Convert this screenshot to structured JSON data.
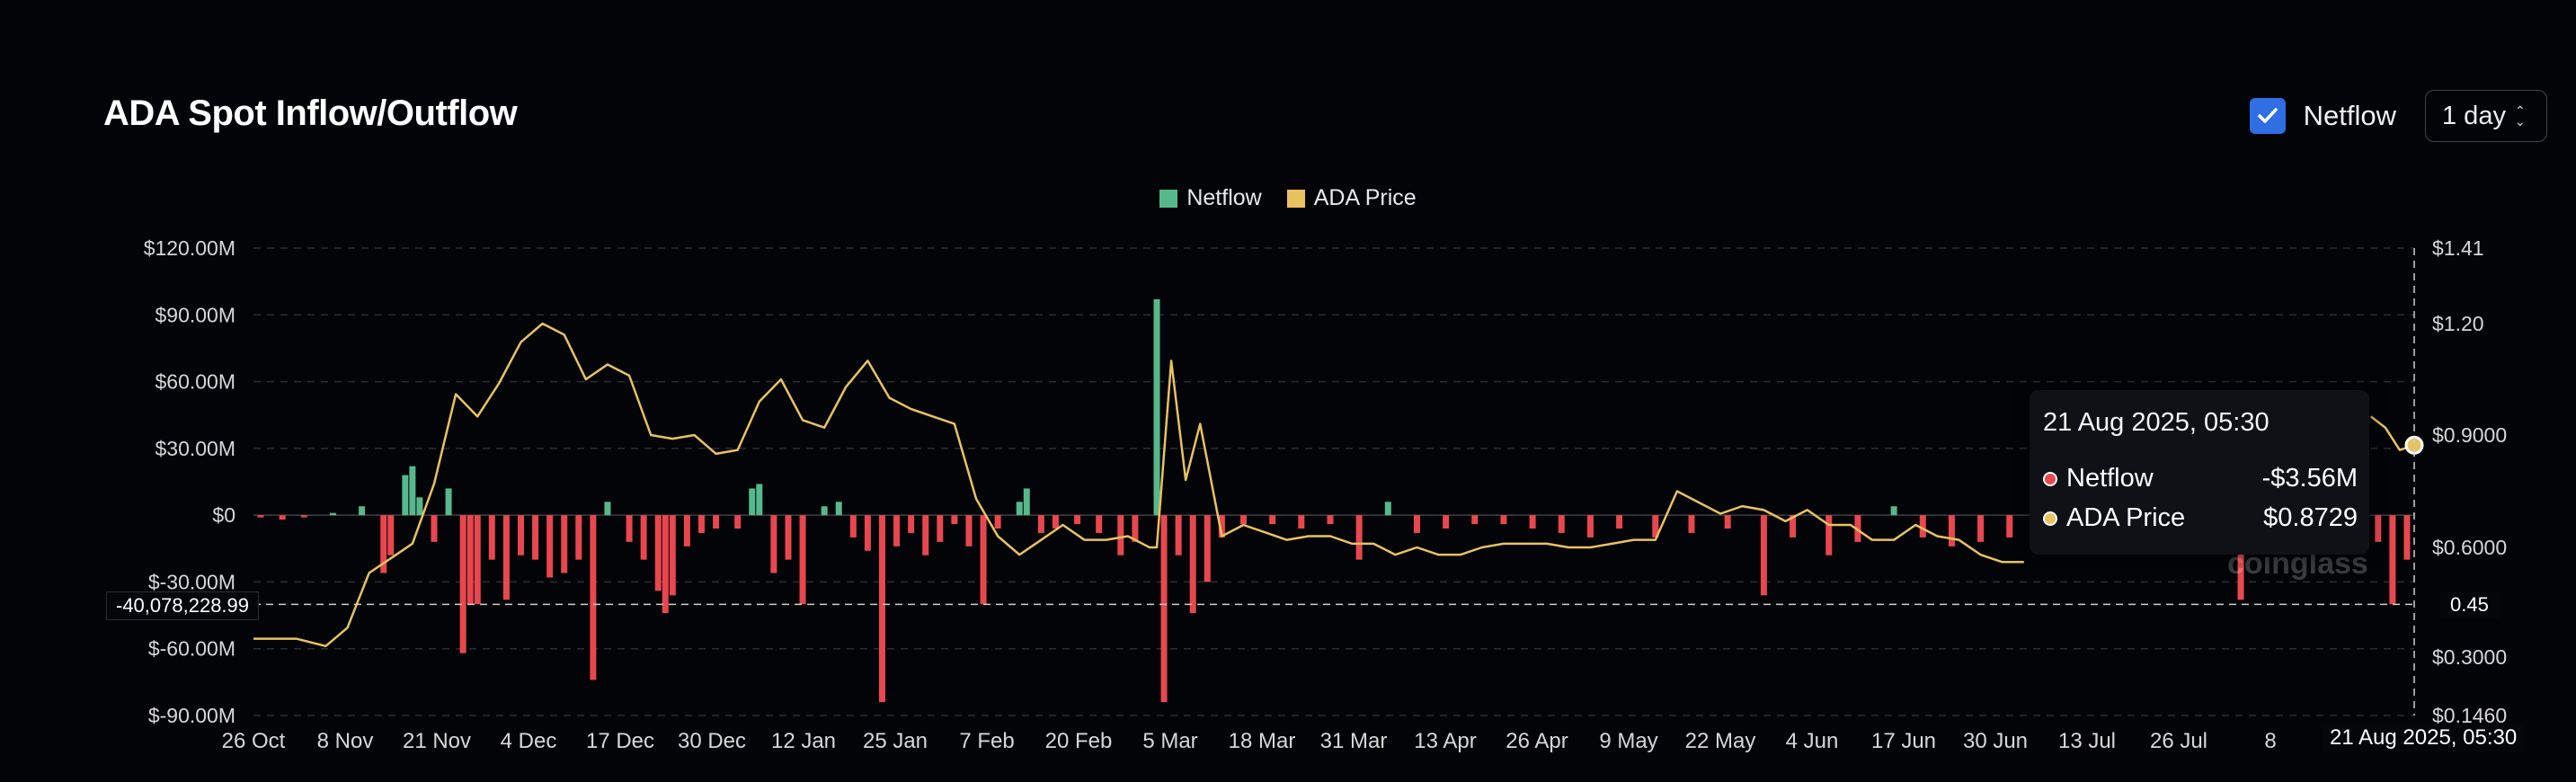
{
  "header": {
    "title": "ADA Spot Inflow/Outflow",
    "checkbox_label": "Netflow",
    "checkbox_checked": true,
    "interval": "1 day"
  },
  "legend": [
    {
      "label": "Netflow",
      "color": "#57b88c"
    },
    {
      "label": "ADA Price",
      "color": "#e9c260"
    }
  ],
  "tooltip": {
    "date": "21 Aug 2025, 05:30",
    "rows": [
      {
        "label": "Netflow",
        "value": "-$3.56M",
        "color": "#e8474f"
      },
      {
        "label": "ADA Price",
        "value": "$0.8729",
        "color": "#e9c260"
      }
    ]
  },
  "crosshair": {
    "y_value_label": "-40,078,228.99",
    "price_label": "0.45",
    "date_label": "21 Aug 2025, 05:30"
  },
  "watermark": "coinglass",
  "chart_data": {
    "type": "bar",
    "left_axis": {
      "ticks": [
        "$120.00M",
        "$90.00M",
        "$60.00M",
        "$30.00M",
        "$0",
        "$-30.00M",
        "$-60.00M",
        "$-90.00M"
      ],
      "range": [
        -90,
        120
      ],
      "unit": "M USD"
    },
    "right_axis": {
      "ticks": [
        "$1.41",
        "$1.20",
        "$0.9000",
        "$0.6000",
        "$0.3000",
        "$0.1460"
      ],
      "type": "piecewise"
    },
    "x_ticks": [
      "26 Oct",
      "8 Nov",
      "21 Nov",
      "4 Dec",
      "17 Dec",
      "30 Dec",
      "12 Jan",
      "25 Jan",
      "7 Feb",
      "20 Feb",
      "5 Mar",
      "18 Mar",
      "31 Mar",
      "13 Apr",
      "26 Apr",
      "9 May",
      "22 May",
      "4 Jun",
      "17 Jun",
      "30 Jun",
      "13 Jul",
      "26 Jul",
      "8"
    ],
    "start_date": "2024-10-26",
    "end_date": "2025-08-21",
    "series": [
      {
        "name": "Netflow",
        "color_pos": "#57b88c",
        "color_neg": "#e8474f",
        "units": "M USD",
        "points": [
          {
            "x": "2024-10-27",
            "y": -1
          },
          {
            "x": "2024-10-30",
            "y": -2
          },
          {
            "x": "2024-11-02",
            "y": -1
          },
          {
            "x": "2024-11-06",
            "y": 1
          },
          {
            "x": "2024-11-10",
            "y": 4
          },
          {
            "x": "2024-11-13",
            "y": -26
          },
          {
            "x": "2024-11-14",
            "y": -18
          },
          {
            "x": "2024-11-16",
            "y": 18
          },
          {
            "x": "2024-11-17",
            "y": 22
          },
          {
            "x": "2024-11-18",
            "y": 8
          },
          {
            "x": "2024-11-20",
            "y": -12
          },
          {
            "x": "2024-11-22",
            "y": 12
          },
          {
            "x": "2024-11-24",
            "y": -62
          },
          {
            "x": "2024-11-25",
            "y": -40
          },
          {
            "x": "2024-11-26",
            "y": -40
          },
          {
            "x": "2024-11-28",
            "y": -20
          },
          {
            "x": "2024-11-30",
            "y": -38
          },
          {
            "x": "2024-12-02",
            "y": -18
          },
          {
            "x": "2024-12-04",
            "y": -20
          },
          {
            "x": "2024-12-06",
            "y": -28
          },
          {
            "x": "2024-12-08",
            "y": -26
          },
          {
            "x": "2024-12-10",
            "y": -20
          },
          {
            "x": "2024-12-12",
            "y": -74
          },
          {
            "x": "2024-12-14",
            "y": 6
          },
          {
            "x": "2024-12-17",
            "y": -12
          },
          {
            "x": "2024-12-19",
            "y": -20
          },
          {
            "x": "2024-12-21",
            "y": -34
          },
          {
            "x": "2024-12-22",
            "y": -44
          },
          {
            "x": "2024-12-23",
            "y": -36
          },
          {
            "x": "2024-12-25",
            "y": -14
          },
          {
            "x": "2024-12-27",
            "y": -8
          },
          {
            "x": "2024-12-29",
            "y": -6
          },
          {
            "x": "2025-01-01",
            "y": -6
          },
          {
            "x": "2025-01-03",
            "y": 12
          },
          {
            "x": "2025-01-04",
            "y": 14
          },
          {
            "x": "2025-01-06",
            "y": -26
          },
          {
            "x": "2025-01-08",
            "y": -20
          },
          {
            "x": "2025-01-10",
            "y": -40
          },
          {
            "x": "2025-01-13",
            "y": 4
          },
          {
            "x": "2025-01-15",
            "y": 6
          },
          {
            "x": "2025-01-17",
            "y": -10
          },
          {
            "x": "2025-01-19",
            "y": -16
          },
          {
            "x": "2025-01-21",
            "y": -84
          },
          {
            "x": "2025-01-23",
            "y": -14
          },
          {
            "x": "2025-01-25",
            "y": -8
          },
          {
            "x": "2025-01-27",
            "y": -18
          },
          {
            "x": "2025-01-29",
            "y": -12
          },
          {
            "x": "2025-01-31",
            "y": -4
          },
          {
            "x": "2025-02-02",
            "y": -14
          },
          {
            "x": "2025-02-04",
            "y": -40
          },
          {
            "x": "2025-02-06",
            "y": -6
          },
          {
            "x": "2025-02-09",
            "y": 6
          },
          {
            "x": "2025-02-10",
            "y": 12
          },
          {
            "x": "2025-02-12",
            "y": -8
          },
          {
            "x": "2025-02-14",
            "y": -6
          },
          {
            "x": "2025-02-17",
            "y": -4
          },
          {
            "x": "2025-02-20",
            "y": -8
          },
          {
            "x": "2025-02-23",
            "y": -18
          },
          {
            "x": "2025-02-25",
            "y": -12
          },
          {
            "x": "2025-02-28",
            "y": 97
          },
          {
            "x": "2025-03-01",
            "y": -84
          },
          {
            "x": "2025-03-03",
            "y": -18
          },
          {
            "x": "2025-03-05",
            "y": -44
          },
          {
            "x": "2025-03-07",
            "y": -30
          },
          {
            "x": "2025-03-09",
            "y": -10
          },
          {
            "x": "2025-03-12",
            "y": -4
          },
          {
            "x": "2025-03-16",
            "y": -4
          },
          {
            "x": "2025-03-20",
            "y": -6
          },
          {
            "x": "2025-03-24",
            "y": -4
          },
          {
            "x": "2025-03-28",
            "y": -20
          },
          {
            "x": "2025-04-01",
            "y": 6
          },
          {
            "x": "2025-04-05",
            "y": -8
          },
          {
            "x": "2025-04-09",
            "y": -6
          },
          {
            "x": "2025-04-13",
            "y": -4
          },
          {
            "x": "2025-04-17",
            "y": -4
          },
          {
            "x": "2025-04-21",
            "y": -6
          },
          {
            "x": "2025-04-25",
            "y": -8
          },
          {
            "x": "2025-04-29",
            "y": -10
          },
          {
            "x": "2025-05-03",
            "y": -6
          },
          {
            "x": "2025-05-08",
            "y": -10
          },
          {
            "x": "2025-05-13",
            "y": -8
          },
          {
            "x": "2025-05-18",
            "y": -6
          },
          {
            "x": "2025-05-23",
            "y": -36
          },
          {
            "x": "2025-05-27",
            "y": -10
          },
          {
            "x": "2025-06-01",
            "y": -18
          },
          {
            "x": "2025-06-05",
            "y": -12
          },
          {
            "x": "2025-06-10",
            "y": 4
          },
          {
            "x": "2025-06-14",
            "y": -10
          },
          {
            "x": "2025-06-18",
            "y": -14
          },
          {
            "x": "2025-06-22",
            "y": -12
          },
          {
            "x": "2025-06-26",
            "y": -10
          },
          {
            "x": "2025-07-28",
            "y": -38
          },
          {
            "x": "2025-08-10",
            "y": -16
          },
          {
            "x": "2025-08-13",
            "y": 8
          },
          {
            "x": "2025-08-16",
            "y": -12
          },
          {
            "x": "2025-08-18",
            "y": -40
          },
          {
            "x": "2025-08-20",
            "y": -20
          }
        ]
      },
      {
        "name": "ADA Price",
        "color": "#e9c260",
        "units": "USD",
        "points": [
          {
            "x": "2024-10-26",
            "y": 0.35
          },
          {
            "x": "2024-10-29",
            "y": 0.35
          },
          {
            "x": "2024-11-01",
            "y": 0.35
          },
          {
            "x": "2024-11-05",
            "y": 0.33
          },
          {
            "x": "2024-11-08",
            "y": 0.38
          },
          {
            "x": "2024-11-11",
            "y": 0.53
          },
          {
            "x": "2024-11-14",
            "y": 0.57
          },
          {
            "x": "2024-11-17",
            "y": 0.61
          },
          {
            "x": "2024-11-20",
            "y": 0.77
          },
          {
            "x": "2024-11-23",
            "y": 1.01
          },
          {
            "x": "2024-11-26",
            "y": 0.95
          },
          {
            "x": "2024-11-29",
            "y": 1.04
          },
          {
            "x": "2024-12-02",
            "y": 1.15
          },
          {
            "x": "2024-12-05",
            "y": 1.2
          },
          {
            "x": "2024-12-08",
            "y": 1.17
          },
          {
            "x": "2024-12-11",
            "y": 1.05
          },
          {
            "x": "2024-12-14",
            "y": 1.09
          },
          {
            "x": "2024-12-17",
            "y": 1.06
          },
          {
            "x": "2024-12-20",
            "y": 0.9
          },
          {
            "x": "2024-12-23",
            "y": 0.89
          },
          {
            "x": "2024-12-26",
            "y": 0.9
          },
          {
            "x": "2024-12-29",
            "y": 0.85
          },
          {
            "x": "2025-01-01",
            "y": 0.86
          },
          {
            "x": "2025-01-04",
            "y": 0.99
          },
          {
            "x": "2025-01-07",
            "y": 1.05
          },
          {
            "x": "2025-01-10",
            "y": 0.94
          },
          {
            "x": "2025-01-13",
            "y": 0.92
          },
          {
            "x": "2025-01-16",
            "y": 1.03
          },
          {
            "x": "2025-01-19",
            "y": 1.1
          },
          {
            "x": "2025-01-22",
            "y": 1.0
          },
          {
            "x": "2025-01-25",
            "y": 0.97
          },
          {
            "x": "2025-01-28",
            "y": 0.95
          },
          {
            "x": "2025-01-31",
            "y": 0.93
          },
          {
            "x": "2025-02-03",
            "y": 0.73
          },
          {
            "x": "2025-02-06",
            "y": 0.63
          },
          {
            "x": "2025-02-09",
            "y": 0.58
          },
          {
            "x": "2025-02-12",
            "y": 0.62
          },
          {
            "x": "2025-02-15",
            "y": 0.66
          },
          {
            "x": "2025-02-18",
            "y": 0.62
          },
          {
            "x": "2025-02-21",
            "y": 0.62
          },
          {
            "x": "2025-02-24",
            "y": 0.63
          },
          {
            "x": "2025-02-27",
            "y": 0.6
          },
          {
            "x": "2025-02-28",
            "y": 0.6
          },
          {
            "x": "2025-03-02",
            "y": 1.1
          },
          {
            "x": "2025-03-04",
            "y": 0.78
          },
          {
            "x": "2025-03-06",
            "y": 0.93
          },
          {
            "x": "2025-03-09",
            "y": 0.63
          },
          {
            "x": "2025-03-12",
            "y": 0.66
          },
          {
            "x": "2025-03-15",
            "y": 0.64
          },
          {
            "x": "2025-03-18",
            "y": 0.62
          },
          {
            "x": "2025-03-21",
            "y": 0.63
          },
          {
            "x": "2025-03-24",
            "y": 0.63
          },
          {
            "x": "2025-03-27",
            "y": 0.61
          },
          {
            "x": "2025-03-30",
            "y": 0.61
          },
          {
            "x": "2025-04-02",
            "y": 0.58
          },
          {
            "x": "2025-04-05",
            "y": 0.6
          },
          {
            "x": "2025-04-08",
            "y": 0.58
          },
          {
            "x": "2025-04-11",
            "y": 0.58
          },
          {
            "x": "2025-04-14",
            "y": 0.6
          },
          {
            "x": "2025-04-17",
            "y": 0.61
          },
          {
            "x": "2025-04-20",
            "y": 0.61
          },
          {
            "x": "2025-04-23",
            "y": 0.61
          },
          {
            "x": "2025-04-26",
            "y": 0.6
          },
          {
            "x": "2025-04-29",
            "y": 0.6
          },
          {
            "x": "2025-05-02",
            "y": 0.61
          },
          {
            "x": "2025-05-05",
            "y": 0.62
          },
          {
            "x": "2025-05-08",
            "y": 0.62
          },
          {
            "x": "2025-05-11",
            "y": 0.75
          },
          {
            "x": "2025-05-14",
            "y": 0.72
          },
          {
            "x": "2025-05-17",
            "y": 0.69
          },
          {
            "x": "2025-05-20",
            "y": 0.71
          },
          {
            "x": "2025-05-23",
            "y": 0.7
          },
          {
            "x": "2025-05-26",
            "y": 0.67
          },
          {
            "x": "2025-05-29",
            "y": 0.7
          },
          {
            "x": "2025-06-01",
            "y": 0.66
          },
          {
            "x": "2025-06-04",
            "y": 0.66
          },
          {
            "x": "2025-06-07",
            "y": 0.62
          },
          {
            "x": "2025-06-10",
            "y": 0.62
          },
          {
            "x": "2025-06-13",
            "y": 0.66
          },
          {
            "x": "2025-06-16",
            "y": 0.63
          },
          {
            "x": "2025-06-19",
            "y": 0.62
          },
          {
            "x": "2025-06-22",
            "y": 0.58
          },
          {
            "x": "2025-06-25",
            "y": 0.56
          },
          {
            "x": "2025-06-28",
            "y": 0.56
          },
          {
            "x": "2025-08-15",
            "y": 0.95
          },
          {
            "x": "2025-08-17",
            "y": 0.92
          },
          {
            "x": "2025-08-19",
            "y": 0.86
          },
          {
            "x": "2025-08-21",
            "y": 0.8729
          }
        ]
      }
    ]
  }
}
